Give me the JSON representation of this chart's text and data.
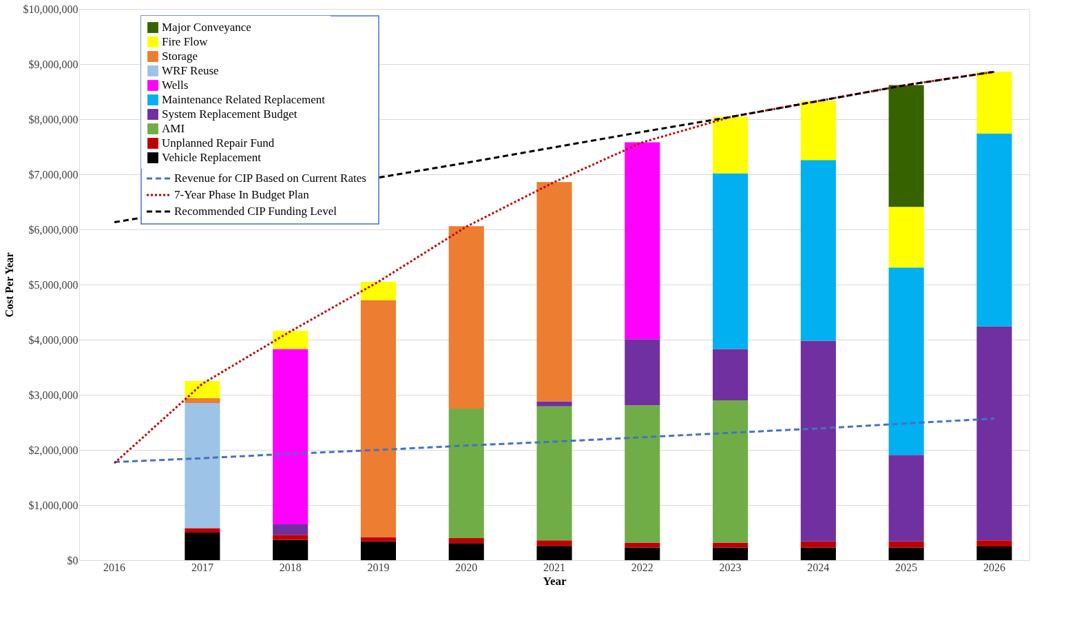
{
  "chart_data": {
    "type": "bar",
    "stacked": true,
    "xlabel": "Year",
    "ylabel": "Cost Per Year",
    "categories": [
      "2016",
      "2017",
      "2018",
      "2019",
      "2020",
      "2021",
      "2022",
      "2023",
      "2024",
      "2025",
      "2026"
    ],
    "ylim": [
      0,
      10000000
    ],
    "yticks": [
      {
        "value": 0,
        "label": "$0"
      },
      {
        "value": 1000000,
        "label": "$1,000,000"
      },
      {
        "value": 2000000,
        "label": "$2,000,000"
      },
      {
        "value": 3000000,
        "label": "$3,000,000"
      },
      {
        "value": 4000000,
        "label": "$4,000,000"
      },
      {
        "value": 5000000,
        "label": "$5,000,000"
      },
      {
        "value": 6000000,
        "label": "$6,000,000"
      },
      {
        "value": 7000000,
        "label": "$7,000,000"
      },
      {
        "value": 8000000,
        "label": "$8,000,000"
      },
      {
        "value": 9000000,
        "label": "$9,000,000"
      },
      {
        "value": 10000000,
        "label": "$10,000,000"
      }
    ],
    "grid": "y",
    "legend": "top left",
    "series": [
      {
        "name": "Vehicle Replacement",
        "color": "#000000",
        "values": [
          null,
          500000,
          370000,
          340000,
          310000,
          260000,
          230000,
          230000,
          230000,
          230000,
          250000
        ]
      },
      {
        "name": "Unplanned Repair Fund",
        "color": "#c00000",
        "values": [
          null,
          80000,
          90000,
          80000,
          90000,
          100000,
          90000,
          90000,
          110000,
          110000,
          110000
        ]
      },
      {
        "name": "AMI",
        "color": "#70ad47",
        "values": [
          null,
          null,
          null,
          null,
          2350000,
          2430000,
          2490000,
          2580000,
          null,
          null,
          null
        ]
      },
      {
        "name": "System Replacement Budget",
        "color": "#7030a0",
        "values": [
          null,
          null,
          190000,
          null,
          null,
          90000,
          1200000,
          930000,
          3640000,
          1570000,
          3880000
        ]
      },
      {
        "name": "Maintenance Related Replacement",
        "color": "#00b0f0",
        "values": [
          null,
          null,
          null,
          null,
          null,
          null,
          null,
          3190000,
          3280000,
          3400000,
          3500000
        ]
      },
      {
        "name": "Wells",
        "color": "#ff00ff",
        "values": [
          null,
          null,
          3180000,
          null,
          null,
          null,
          3570000,
          null,
          null,
          null,
          null
        ]
      },
      {
        "name": "WRF Reuse",
        "color": "#9dc3e6",
        "values": [
          null,
          2270000,
          null,
          null,
          null,
          null,
          null,
          null,
          null,
          null,
          null
        ]
      },
      {
        "name": "Storage",
        "color": "#ed7d31",
        "values": [
          null,
          90000,
          null,
          4300000,
          3310000,
          3980000,
          null,
          null,
          null,
          null,
          null
        ]
      },
      {
        "name": "Fire Flow",
        "color": "#ffff00",
        "values": [
          null,
          310000,
          330000,
          330000,
          null,
          null,
          null,
          1020000,
          1070000,
          1100000,
          1120000
        ]
      },
      {
        "name": "Major Conveyance",
        "color": "#376200",
        "values": [
          null,
          null,
          null,
          null,
          null,
          null,
          null,
          null,
          null,
          2210000,
          null
        ]
      },
      {
        "name": "Revenue for CIP Based on Current Rates",
        "type": "line",
        "color": "#4472c4",
        "line_style": "dashed",
        "values": [
          1780000,
          1850000,
          1930000,
          2000000,
          2080000,
          2150000,
          2230000,
          2310000,
          2390000,
          2480000,
          2570000
        ]
      },
      {
        "name": "7-Year Phase In Budget Plan",
        "type": "line",
        "color": "#c00000",
        "line_style": "dotted",
        "values": [
          1760000,
          3200000,
          4150000,
          5050000,
          6050000,
          6860000,
          7580000,
          8040000,
          8330000,
          8620000,
          8860000
        ]
      },
      {
        "name": "Recommended CIP Funding Level",
        "type": "line",
        "color": "#000000",
        "line_style": "dashed",
        "values": [
          6130000,
          null,
          null,
          null,
          7210000,
          7490000,
          7770000,
          8040000,
          8330000,
          8620000,
          8860000
        ]
      }
    ]
  }
}
